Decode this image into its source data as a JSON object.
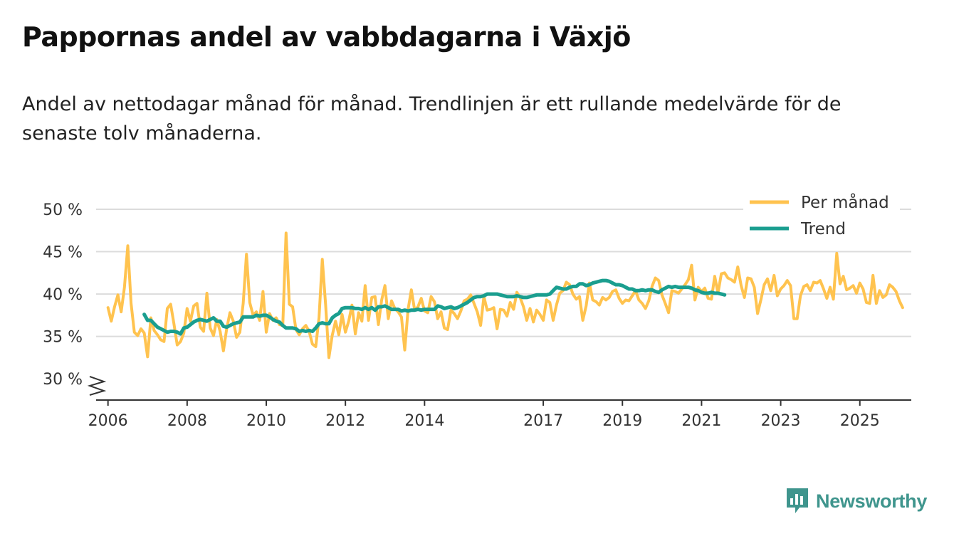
{
  "title": "Pappornas andel av vabbdagarna i Växjö",
  "subtitle": "Andel av nettodagar månad för månad. Trendlinjen är ett rullande medelvärde för de senaste tolv månaderna.",
  "brand": "Newsworthy",
  "colors": {
    "monthly": "#ffc34f",
    "trend": "#1a9e8f",
    "grid": "#dcdcdc",
    "axis": "#333333",
    "brand": "#3f958d"
  },
  "chart_data": {
    "type": "line",
    "xlim": [
      2005.7,
      2026.3
    ],
    "ylim": [
      27.5,
      50
    ],
    "yticks": [
      30,
      35,
      40,
      45,
      50
    ],
    "ytick_labels": [
      "30 %",
      "35 %",
      "40 %",
      "45 %",
      "50 %"
    ],
    "xticks": [
      2006,
      2008,
      2010,
      2012,
      2014,
      2017,
      2019,
      2021,
      2023,
      2025
    ],
    "xtick_labels": [
      "2006",
      "2008",
      "2010",
      "2012",
      "2014",
      "2017",
      "2019",
      "2021",
      "2023",
      "2025"
    ],
    "axis_break": true,
    "legend_position": "top-right",
    "series": [
      {
        "name": "Per månad",
        "color": "#ffc34f",
        "x_start": 2006.0,
        "x_step": 0.08333,
        "values": [
          38.4,
          36.8,
          38.5,
          39.9,
          37.9,
          40.8,
          45.7,
          38.9,
          35.5,
          35.1,
          35.9,
          35.4,
          32.6,
          37.2,
          35.7,
          35.2,
          34.6,
          34.4,
          38.3,
          38.8,
          36.5,
          34.0,
          34.4,
          35.4,
          38.3,
          36.8,
          38.6,
          38.9,
          36.1,
          35.6,
          40.1,
          36.0,
          35.1,
          37.0,
          35.6,
          33.3,
          35.9,
          37.8,
          36.8,
          34.9,
          35.5,
          38.9,
          44.7,
          39.0,
          37.5,
          37.9,
          36.9,
          40.3,
          35.5,
          37.7,
          36.9,
          37.2,
          36.4,
          36.3,
          47.2,
          38.8,
          38.5,
          35.8,
          35.2,
          35.9,
          36.3,
          35.6,
          34.1,
          33.8,
          37.2,
          44.1,
          38.7,
          32.5,
          35.1,
          36.8,
          35.2,
          37.6,
          35.5,
          36.8,
          38.7,
          35.3,
          37.8,
          36.8,
          41.0,
          36.9,
          39.6,
          39.7,
          36.4,
          39.3,
          41.0,
          37.1,
          39.2,
          38.3,
          37.9,
          37.3,
          33.4,
          38.2,
          40.5,
          38.1,
          38.5,
          39.5,
          38.0,
          37.8,
          39.7,
          39.1,
          37.1,
          37.9,
          36.0,
          35.8,
          38.1,
          37.7,
          37.1,
          38.0,
          39.2,
          39.4,
          39.9,
          38.9,
          37.9,
          36.3,
          39.7,
          38.1,
          38.2,
          38.4,
          35.9,
          38.2,
          38.1,
          37.4,
          39.0,
          38.2,
          40.2,
          39.6,
          38.5,
          36.9,
          38.3,
          36.7,
          38.1,
          37.6,
          36.9,
          39.3,
          39.0,
          36.9,
          38.7,
          40.1,
          40.4,
          41.4,
          41.1,
          40.0,
          39.4,
          39.7,
          36.9,
          38.6,
          41.3,
          39.3,
          39.1,
          38.7,
          39.6,
          39.3,
          39.6,
          40.3,
          40.5,
          39.5,
          38.9,
          39.3,
          39.2,
          39.8,
          40.4,
          39.3,
          38.9,
          38.3,
          39.2,
          40.9,
          41.9,
          41.6,
          39.9,
          38.9,
          37.8,
          40.4,
          40.3,
          40.1,
          40.6,
          41.1,
          41.7,
          43.4,
          39.3,
          40.8,
          40.3,
          40.7,
          39.5,
          39.4,
          42.1,
          40.1,
          42.4,
          42.5,
          41.9,
          41.7,
          41.4,
          43.2,
          41.0,
          39.6,
          41.9,
          41.8,
          40.8,
          37.7,
          39.3,
          41.1,
          41.8,
          40.4,
          42.2,
          39.8,
          40.6,
          41.0,
          41.6,
          41.0,
          37.1,
          37.1,
          39.8,
          40.9,
          41.1,
          40.4,
          41.4,
          41.3,
          41.6,
          40.6,
          39.5,
          40.8,
          39.4,
          44.8,
          41.2,
          42.1,
          40.5,
          40.7,
          41.0,
          40.1,
          41.3,
          40.6,
          39.0,
          38.9,
          42.2,
          38.9,
          40.4,
          39.6,
          39.9,
          41.1,
          40.8,
          40.3,
          39.2,
          38.4
        ]
      },
      {
        "name": "Trend",
        "color": "#1a9e8f",
        "x_start": 2006.917,
        "x_step": 0.08333,
        "values": [
          37.6,
          36.9,
          36.9,
          36.5,
          36.1,
          35.9,
          35.7,
          35.5,
          35.6,
          35.6,
          35.5,
          35.3,
          36.0,
          36.1,
          36.4,
          36.7,
          36.9,
          37.0,
          36.9,
          36.8,
          37.0,
          37.2,
          36.8,
          36.8,
          36.2,
          36.1,
          36.3,
          36.5,
          36.6,
          36.7,
          37.3,
          37.3,
          37.3,
          37.3,
          37.5,
          37.4,
          37.5,
          37.5,
          37.3,
          37.0,
          36.8,
          36.7,
          36.3,
          36.0,
          36.0,
          36.0,
          35.9,
          35.6,
          35.7,
          35.6,
          35.7,
          35.6,
          36.0,
          36.5,
          36.6,
          36.5,
          36.5,
          37.2,
          37.5,
          37.7,
          38.3,
          38.4,
          38.4,
          38.4,
          38.3,
          38.3,
          38.2,
          38.4,
          38.2,
          38.4,
          38.1,
          38.5,
          38.5,
          38.6,
          38.4,
          38.2,
          38.2,
          38.2,
          38.0,
          38.1,
          38.0,
          38.1,
          38.1,
          38.2,
          38.1,
          38.2,
          38.2,
          38.2,
          38.2,
          38.6,
          38.5,
          38.3,
          38.4,
          38.5,
          38.3,
          38.4,
          38.6,
          38.8,
          39.0,
          39.3,
          39.6,
          39.7,
          39.7,
          39.8,
          40.0,
          40.0,
          40.0,
          40.0,
          39.9,
          39.8,
          39.7,
          39.7,
          39.7,
          39.8,
          39.7,
          39.6,
          39.6,
          39.7,
          39.8,
          39.9,
          39.9,
          39.9,
          39.9,
          40.0,
          40.4,
          40.8,
          40.7,
          40.6,
          40.6,
          40.8,
          40.9,
          40.9,
          41.2,
          41.2,
          41.0,
          41.1,
          41.3,
          41.4,
          41.5,
          41.6,
          41.6,
          41.5,
          41.3,
          41.1,
          41.1,
          41.0,
          40.8,
          40.6,
          40.6,
          40.4,
          40.4,
          40.5,
          40.4,
          40.5,
          40.5,
          40.3,
          40.2,
          40.5,
          40.7,
          40.9,
          40.8,
          40.9,
          40.8,
          40.8,
          40.8,
          40.8,
          40.7,
          40.5,
          40.4,
          40.2,
          40.1,
          40.1,
          40.2,
          40.1,
          40.1,
          40.0,
          39.9
        ]
      }
    ]
  }
}
